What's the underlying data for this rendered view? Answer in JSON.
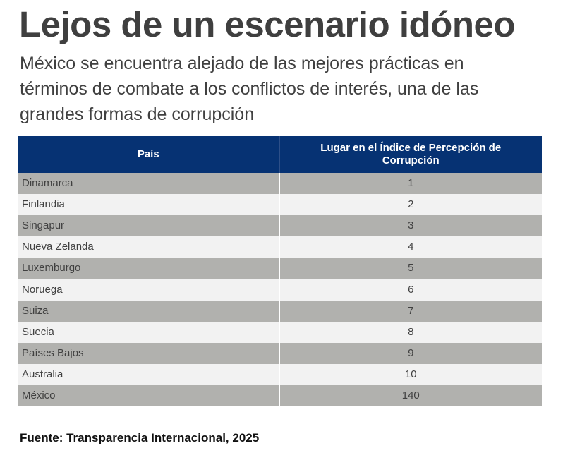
{
  "title": "Lejos de un escenario idóneo",
  "subtitle": "México se encuentra alejado de las mejores prácticas en términos de combate a los conflictos de interés, una de las grandes formas de corrupción",
  "colors": {
    "header_bg": "#063273",
    "header_text": "#ffffff",
    "row_dark": "#b1b1ae",
    "row_light": "#f2f2f2"
  },
  "chart_data": {
    "type": "table",
    "columns": [
      "País",
      "Lugar en el Índice de Percepción de Corrupción"
    ],
    "rows": [
      [
        "Dinamarca",
        "1"
      ],
      [
        "Finlandia",
        "2"
      ],
      [
        "Singapur",
        "3"
      ],
      [
        "Nueva Zelanda",
        "4"
      ],
      [
        "Luxemburgo",
        "5"
      ],
      [
        "Noruega",
        "6"
      ],
      [
        "Suiza",
        "7"
      ],
      [
        "Suecia",
        "8"
      ],
      [
        "Países Bajos",
        "9"
      ],
      [
        "Australia",
        "10"
      ],
      [
        "México",
        "140"
      ]
    ]
  },
  "source": "Fuente: Transparencia Internacional, 2025"
}
